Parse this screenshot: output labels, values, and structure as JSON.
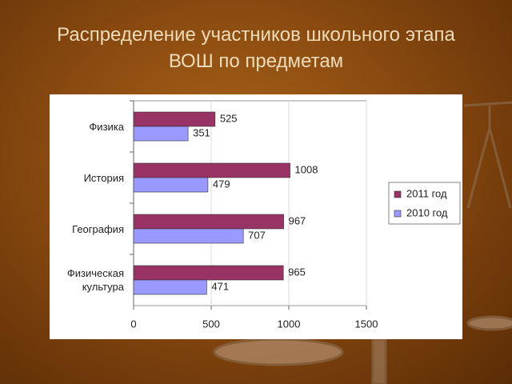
{
  "chart_data": {
    "type": "barh",
    "title": "Распределение участников школьного этапа ВОШ по предметам",
    "categories": [
      "Физика",
      "История",
      "География",
      "Физическая культура"
    ],
    "series": [
      {
        "name": "2011 год",
        "color": "#993366",
        "values": [
          525,
          1008,
          967,
          965
        ]
      },
      {
        "name": "2010 год",
        "color": "#9999ff",
        "values": [
          351,
          479,
          707,
          471
        ]
      }
    ],
    "xlim": [
      0,
      1500
    ],
    "xticks": [
      0,
      500,
      1000,
      1500
    ],
    "grid": true,
    "legend": "right"
  }
}
